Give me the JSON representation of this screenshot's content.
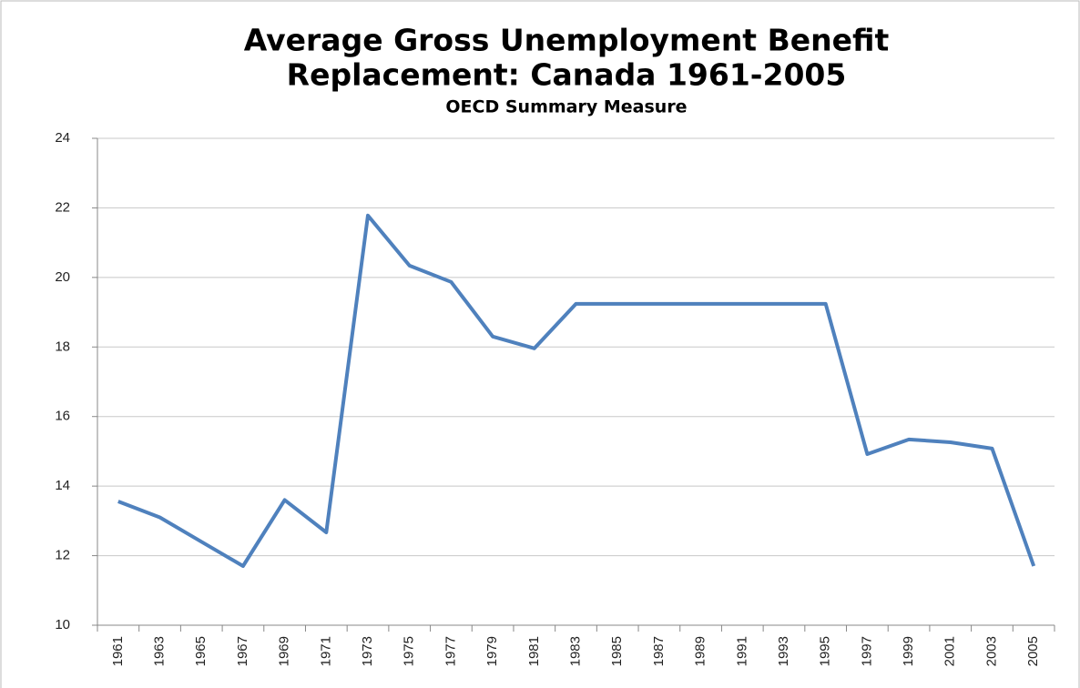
{
  "chart_data": {
    "type": "line",
    "title": [
      "Average Gross Unemployment Benefit",
      "Replacement: Canada 1961-2005"
    ],
    "subtitle": "OECD Summary Measure",
    "categories": [
      "1961",
      "1963",
      "1965",
      "1967",
      "1969",
      "1971",
      "1973",
      "1975",
      "1977",
      "1979",
      "1981",
      "1983",
      "1985",
      "1987",
      "1989",
      "1991",
      "1993",
      "1995",
      "1997",
      "1999",
      "2001",
      "2003",
      "2005"
    ],
    "series": [
      {
        "color": "#4f81bd",
        "values": [
          13.56,
          13.1,
          12.4,
          11.7,
          13.6,
          12.67,
          21.78,
          20.34,
          19.87,
          18.3,
          17.96,
          19.24,
          19.24,
          19.24,
          19.24,
          19.24,
          19.24,
          19.24,
          14.92,
          15.34,
          15.26,
          15.08,
          11.7
        ]
      }
    ],
    "ylim": [
      10,
      24
    ],
    "yticks": [
      10,
      12,
      14,
      16,
      18,
      20,
      22,
      24
    ],
    "grid": true
  }
}
